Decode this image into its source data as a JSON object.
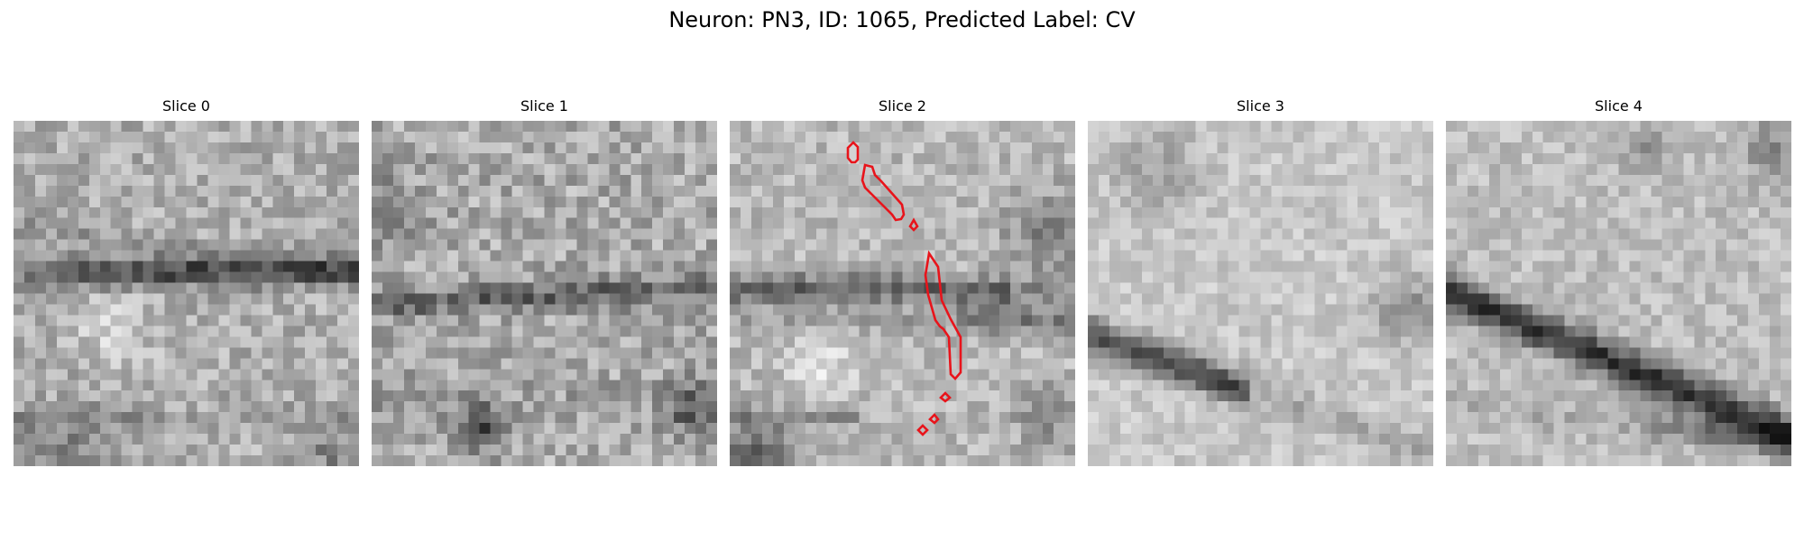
{
  "figure": {
    "title": "Neuron: PN3, ID: 1065, Predicted Label: CV"
  },
  "panels": [
    {
      "title": "Slice 0"
    },
    {
      "title": "Slice 1"
    },
    {
      "title": "Slice 2"
    },
    {
      "title": "Slice 3"
    },
    {
      "title": "Slice 4"
    }
  ],
  "colors": {
    "contour": "#e8141b",
    "background": "#ffffff"
  }
}
